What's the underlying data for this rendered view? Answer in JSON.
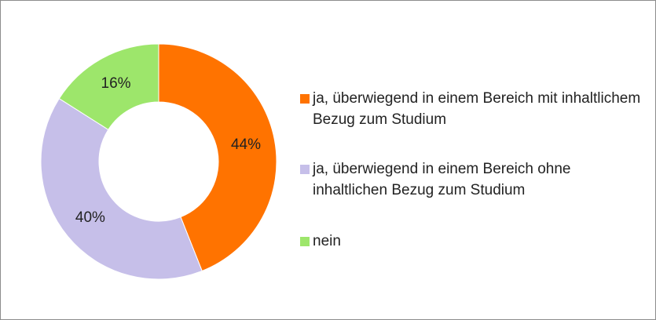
{
  "chart_data": {
    "type": "donut",
    "categories": [
      "ja, überwiegend in einem Bereich mit inhaltlichem Bezug zum Studium",
      "ja, überwiegend in einem Bereich ohne inhaltlichen Bezug zum Studium",
      "nein"
    ],
    "values": [
      44,
      40,
      16
    ],
    "value_labels": [
      "44%",
      "40%",
      "16%"
    ],
    "colors": [
      "#ff7300",
      "#c6bfe9",
      "#9de66b"
    ],
    "legend": "right"
  }
}
